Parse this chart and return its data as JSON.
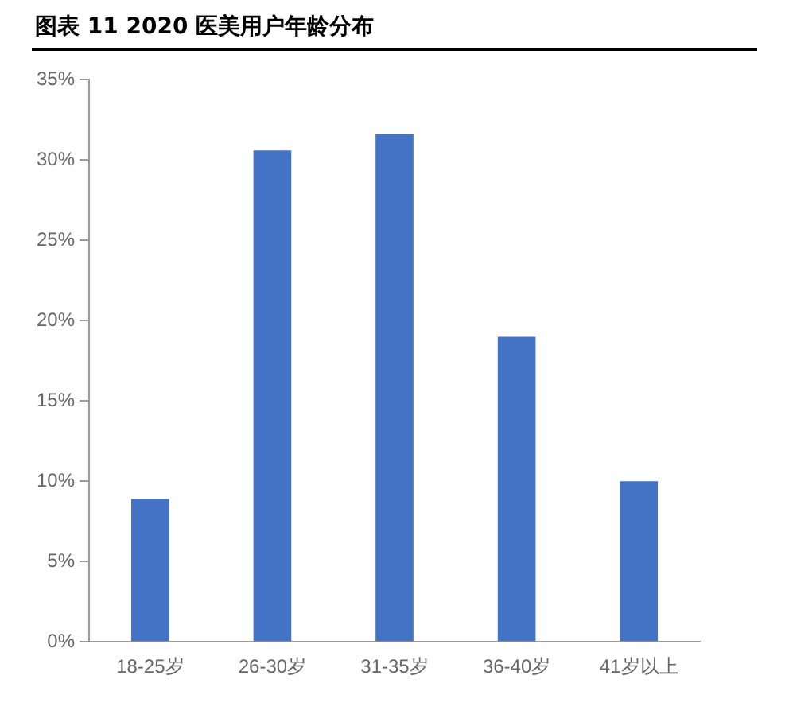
{
  "chart_data": {
    "type": "bar",
    "title": "图表 11 2020 医美用户年龄分布",
    "categories": [
      "18-25岁",
      "26-30岁",
      "31-35岁",
      "36-40岁",
      "41岁以上"
    ],
    "values": [
      8.9,
      30.6,
      31.6,
      19.0,
      10.0
    ],
    "color": "#4472c4",
    "ylim": [
      0,
      35
    ],
    "yticks": [
      {
        "value": 0,
        "label": "0%"
      },
      {
        "value": 5,
        "label": "5%"
      },
      {
        "value": 10,
        "label": "10%"
      },
      {
        "value": 15,
        "label": "15%"
      },
      {
        "value": 20,
        "label": "20%"
      },
      {
        "value": 25,
        "label": "25%"
      },
      {
        "value": 30,
        "label": "30%"
      },
      {
        "value": 35,
        "label": "35%"
      }
    ],
    "grid": false,
    "legend": false
  }
}
